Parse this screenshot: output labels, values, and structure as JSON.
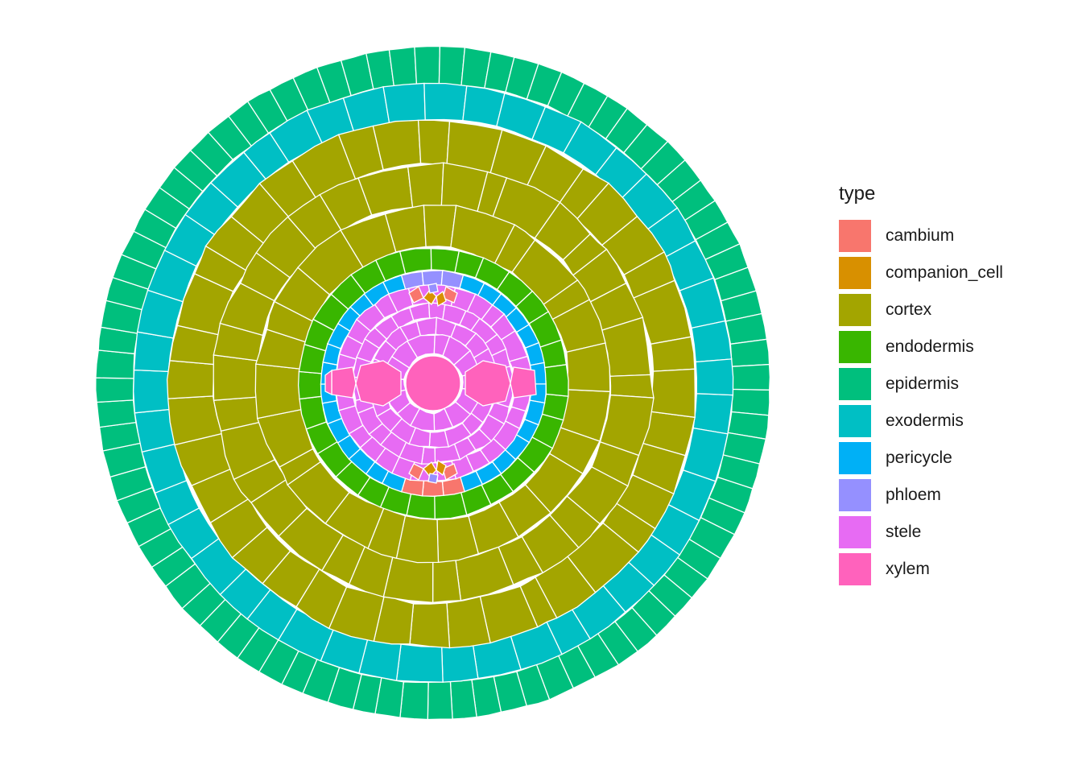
{
  "figure": {
    "legend_title": "type",
    "types": [
      {
        "key": "cambium",
        "label": "cambium",
        "color": "#F8766D"
      },
      {
        "key": "companion_cell",
        "label": "companion_cell",
        "color": "#D89000"
      },
      {
        "key": "cortex",
        "label": "cortex",
        "color": "#A3A500"
      },
      {
        "key": "endodermis",
        "label": "endodermis",
        "color": "#39B600"
      },
      {
        "key": "epidermis",
        "label": "epidermis",
        "color": "#00BF7D"
      },
      {
        "key": "exodermis",
        "label": "exodermis",
        "color": "#00BFC4"
      },
      {
        "key": "pericycle",
        "label": "pericycle",
        "color": "#00B0F6"
      },
      {
        "key": "phloem",
        "label": "phloem",
        "color": "#9590FF"
      },
      {
        "key": "stele",
        "label": "stele",
        "color": "#E76BF3"
      },
      {
        "key": "xylem",
        "label": "xylem",
        "color": "#FF62BC"
      }
    ]
  }
}
